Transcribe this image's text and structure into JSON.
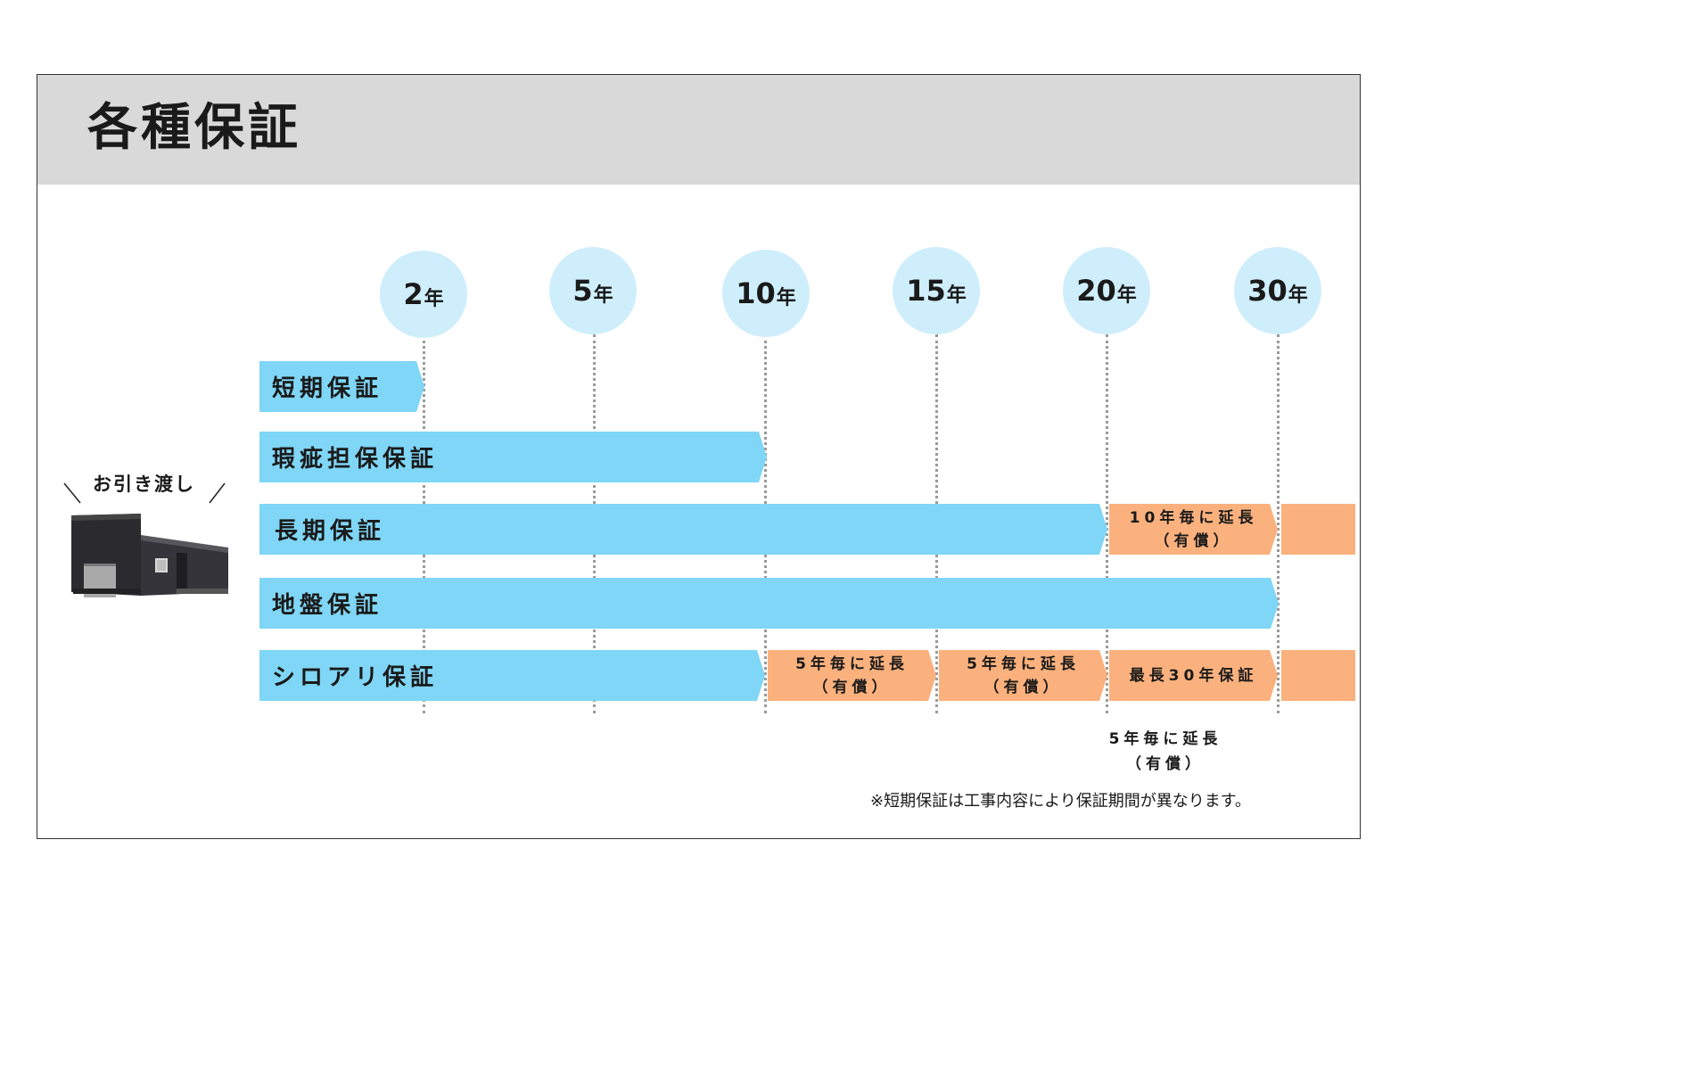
{
  "title": "各種保証",
  "years": [
    {
      "num": "2",
      "unit": "年"
    },
    {
      "num": "5",
      "unit": "年"
    },
    {
      "num": "10",
      "unit": "年"
    },
    {
      "num": "15",
      "unit": "年"
    },
    {
      "num": "20",
      "unit": "年"
    },
    {
      "num": "30",
      "unit": "年"
    }
  ],
  "rows": {
    "short_term": "短期保証",
    "defect": "瑕疵担保保証",
    "long_term": "長期保証",
    "ground": "地盤保証",
    "termite": "シロアリ保証"
  },
  "extensions": {
    "long_term_10yr": {
      "line1": "10年毎に延長",
      "line2": "（有償）"
    },
    "termite_5yr_a": {
      "line1": "5年毎に延長",
      "line2": "（有償）"
    },
    "termite_5yr_b": {
      "line1": "5年毎に延長",
      "line2": "（有償）"
    },
    "termite_max": "最長30年保証",
    "below": {
      "line1": "5年毎に延長",
      "line2": "（有償）"
    }
  },
  "handover_label": "お引き渡し",
  "footnote": "※短期保証は工事内容により保証期間が異なります。",
  "colors": {
    "header_band": "#d9d9d9",
    "year_circle": "#cfeefb",
    "bar_blue": "#7fd6f6",
    "bar_orange": "#fbb17d"
  }
}
